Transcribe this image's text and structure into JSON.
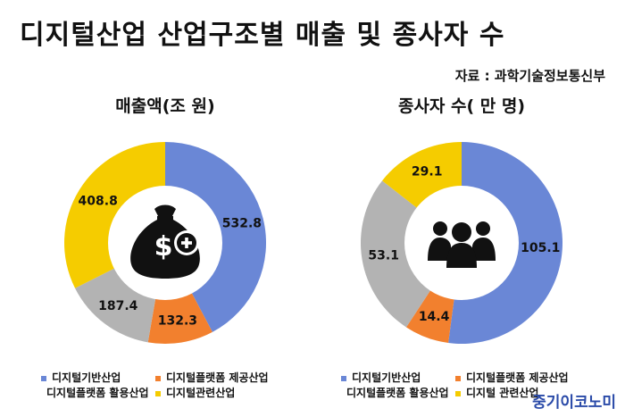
{
  "title": "디지털산업 산업구조별 매출 및 종사자 수",
  "source": "자료 : 과학기술정보통신부",
  "watermark": "중기이코노미",
  "colors": {
    "basic": "#6a87d6",
    "platform_provider": "#f2802e",
    "platform_user": "#b3b3b3",
    "related": "#f5cc00"
  },
  "charts": {
    "sales": {
      "icon": "money-bag-icon"
    },
    "employees": {
      "icon": "people-icon"
    }
  },
  "legend": {
    "left": [
      "디지털기반산업",
      "디지털플랫폼 제공산업",
      "디지털플랫폼 활용산업",
      "디지털관련산업"
    ],
    "right": [
      "디지털기반산업",
      "디지털플랫폼 제공산업",
      "디지털플랫폼 활용산업",
      "디지털 관련산업"
    ]
  },
  "chart_data": [
    {
      "type": "pie",
      "title": "매출액(조 원)",
      "categories": [
        "디지털기반산업",
        "디지털플랫폼 제공산업",
        "디지털플랫폼 활용산업",
        "디지털관련산업"
      ],
      "values": [
        532.8,
        132.3,
        187.4,
        408.8
      ],
      "labels": [
        "532.8",
        "132.3",
        "187.4",
        "408.8"
      ]
    },
    {
      "type": "pie",
      "title": "종사자 수( 만 명)",
      "categories": [
        "디지털기반산업",
        "디지털플랫폼 제공산업",
        "디지털플랫폼 활용산업",
        "디지털 관련산업"
      ],
      "values": [
        105.1,
        14.4,
        53.1,
        29.1
      ],
      "labels": [
        "105.1",
        "14.4",
        "53.1",
        "29.1"
      ]
    }
  ]
}
